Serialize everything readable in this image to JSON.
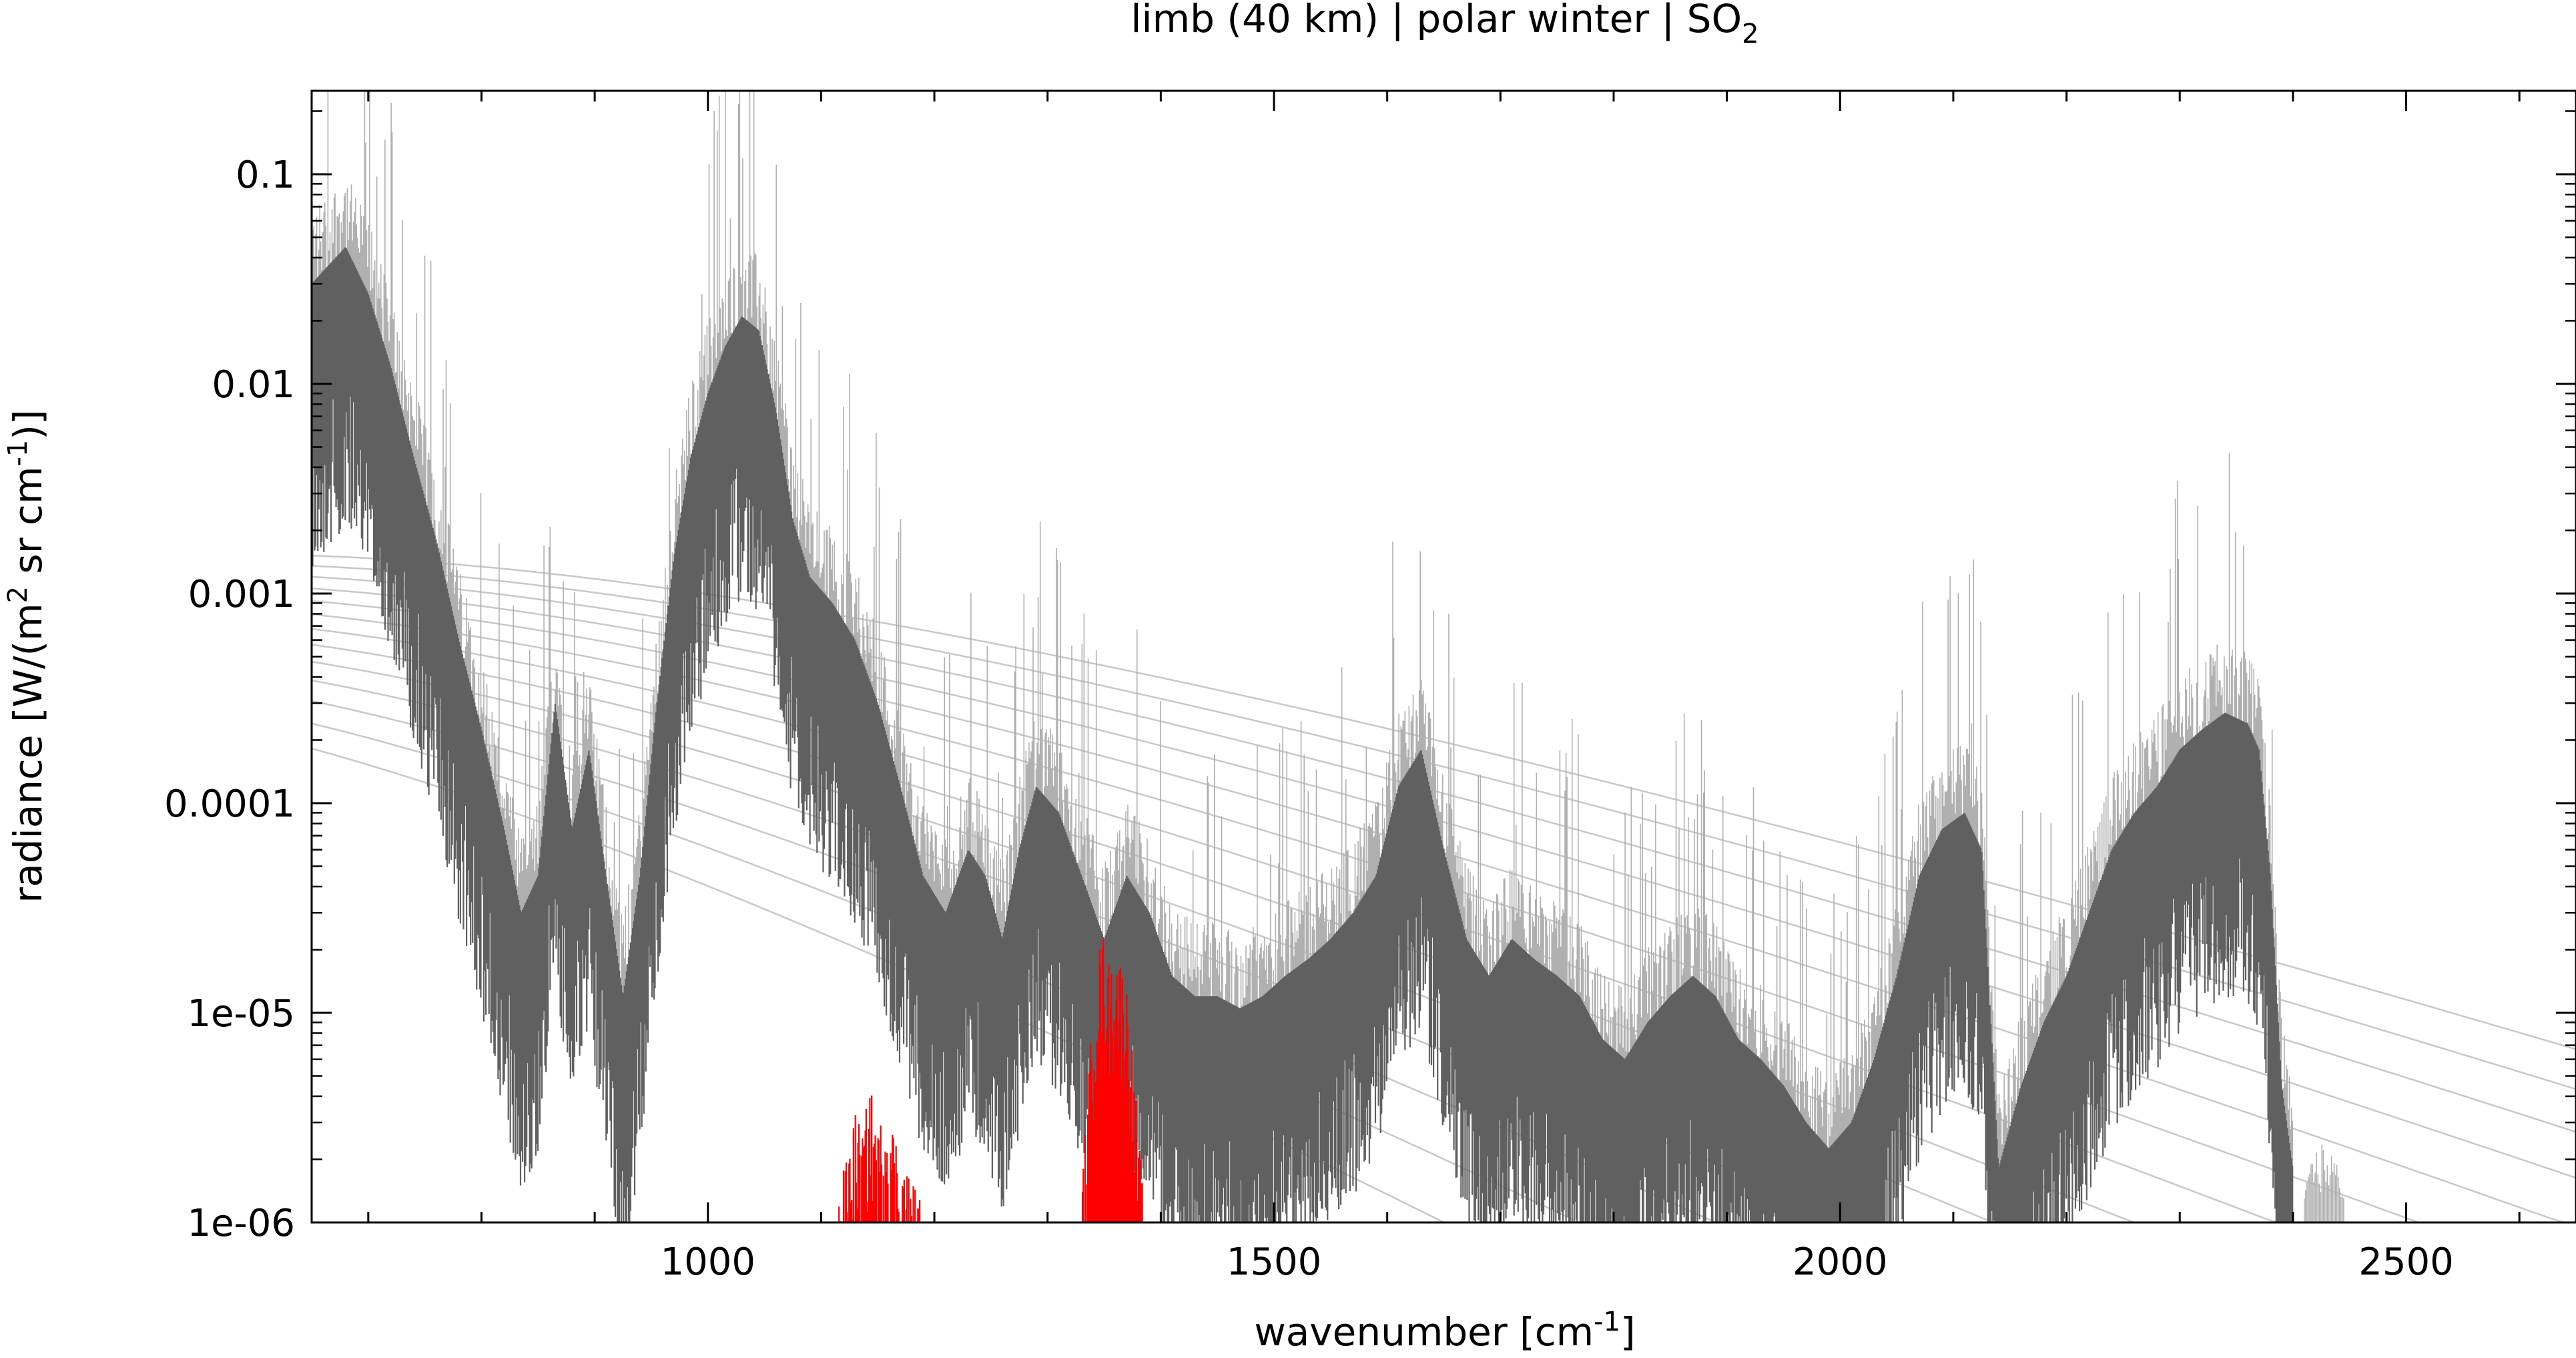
{
  "chart_data": {
    "type": "line",
    "title": "limb (40 km) | polar winter | SO",
    "title_subscript": "2",
    "xlabel": "wavenumber [cm",
    "xlabel_sup": "-1",
    "xlabel_end": "]",
    "ylabel": "radiance [W/(m",
    "ylabel_sup1": "2",
    "ylabel_mid": " sr cm",
    "ylabel_sup2": "-1",
    "ylabel_end": ")]",
    "xlim": [
      650,
      2650
    ],
    "ylim": [
      1e-06,
      0.25
    ],
    "yscale": "log",
    "grid": false,
    "xticks": [
      1000,
      1500,
      2000,
      2500
    ],
    "xtick_labels": [
      "1000",
      "1500",
      "2000",
      "2500"
    ],
    "yticks": [
      1e-06,
      1e-05,
      0.0001,
      0.001,
      0.01,
      0.1
    ],
    "ytick_labels": [
      "1e-06",
      "1e-05",
      "0.0001",
      "0.001",
      "0.01",
      "0.1"
    ],
    "colors": {
      "total_spectrum": "#606060",
      "spectrum_light": "#b0b0b0",
      "so2_contribution": "#ff0000",
      "planck_curves": "#c8c8c8"
    },
    "series": [
      {
        "role": "total",
        "x": [
          650,
          680,
          700,
          720,
          740,
          760,
          780,
          800,
          820,
          835,
          850,
          865,
          880,
          895,
          910,
          925,
          940,
          955,
          970,
          985,
          1000,
          1015,
          1030,
          1045,
          1060,
          1075,
          1090,
          1110,
          1130,
          1150,
          1170,
          1190,
          1210,
          1230,
          1245,
          1260,
          1275,
          1290,
          1310,
          1330,
          1350,
          1370,
          1390,
          1410,
          1430,
          1450,
          1470,
          1490,
          1510,
          1530,
          1550,
          1570,
          1590,
          1610,
          1630,
          1650,
          1670,
          1690,
          1710,
          1730,
          1750,
          1770,
          1790,
          1810,
          1830,
          1850,
          1870,
          1890,
          1910,
          1930,
          1950,
          1970,
          1990,
          2010,
          2030,
          2050,
          2070,
          2090,
          2110,
          2125,
          2140,
          2160,
          2180,
          2200,
          2220,
          2240,
          2260,
          2280,
          2300,
          2320,
          2340,
          2360,
          2370,
          2380,
          2390,
          2400
        ],
        "y": [
          0.02,
          0.03,
          0.018,
          0.008,
          0.003,
          0.0012,
          0.0004,
          0.00015,
          5e-05,
          2e-05,
          3e-05,
          0.0002,
          5e-05,
          0.00012,
          3e-05,
          8e-06,
          3e-05,
          0.0002,
          0.001,
          0.003,
          0.006,
          0.01,
          0.014,
          0.012,
          0.005,
          0.0015,
          0.0008,
          0.0006,
          0.0004,
          0.0002,
          8e-05,
          3e-05,
          2e-05,
          4e-05,
          3e-05,
          1.5e-05,
          4e-05,
          8e-05,
          6e-05,
          3e-05,
          1.5e-05,
          3e-05,
          2e-05,
          1e-05,
          8e-06,
          8e-06,
          7e-06,
          8e-06,
          1e-05,
          1.2e-05,
          1.5e-05,
          2e-05,
          3e-05,
          8e-05,
          0.00012,
          4e-05,
          1.5e-05,
          1e-05,
          1.5e-05,
          1.2e-05,
          1e-05,
          8e-06,
          5e-06,
          4e-06,
          6e-06,
          8e-06,
          1e-05,
          8e-06,
          5e-06,
          4e-06,
          3e-06,
          2e-06,
          1.5e-06,
          2e-06,
          4e-06,
          1e-05,
          3e-05,
          5e-05,
          6e-05,
          4e-05,
          1.2e-06,
          3e-06,
          6e-06,
          1e-05,
          2e-05,
          4e-05,
          6e-05,
          8e-05,
          0.00012,
          0.00015,
          0.00018,
          0.00016,
          0.00012,
          3e-05,
          3e-06,
          1.2e-06
        ]
      },
      {
        "role": "SO2",
        "x": [
          1115,
          1122,
          1130,
          1137,
          1143,
          1150,
          1157,
          1165,
          1172,
          1180,
          1188,
          1330,
          1335,
          1340,
          1345,
          1350,
          1355,
          1360,
          1365,
          1370,
          1375,
          1380,
          1385
        ],
        "y": [
          1e-06,
          1.5e-06,
          2.5e-06,
          2e-06,
          3.5e-06,
          2e-06,
          2.8e-06,
          2e-06,
          1.5e-06,
          1.2e-06,
          1e-06,
          1e-06,
          3e-06,
          8e-06,
          1.5e-05,
          1.8e-05,
          1.2e-05,
          1.5e-05,
          1.3e-05,
          1e-05,
          5e-06,
          2e-06,
          1e-06
        ]
      }
    ],
    "reference_curves": [
      {
        "role": "planck",
        "temperature_K": 300
      },
      {
        "role": "planck",
        "temperature_K": 290
      },
      {
        "role": "planck",
        "temperature_K": 280
      },
      {
        "role": "planck",
        "temperature_K": 270
      },
      {
        "role": "planck",
        "temperature_K": 260
      },
      {
        "role": "planck",
        "temperature_K": 250
      },
      {
        "role": "planck",
        "temperature_K": 240
      },
      {
        "role": "planck",
        "temperature_K": 230
      },
      {
        "role": "planck",
        "temperature_K": 220
      },
      {
        "role": "planck",
        "temperature_K": 210
      },
      {
        "role": "planck",
        "temperature_K": 200
      },
      {
        "role": "planck",
        "temperature_K": 190
      },
      {
        "role": "planck",
        "temperature_K": 180
      }
    ]
  }
}
